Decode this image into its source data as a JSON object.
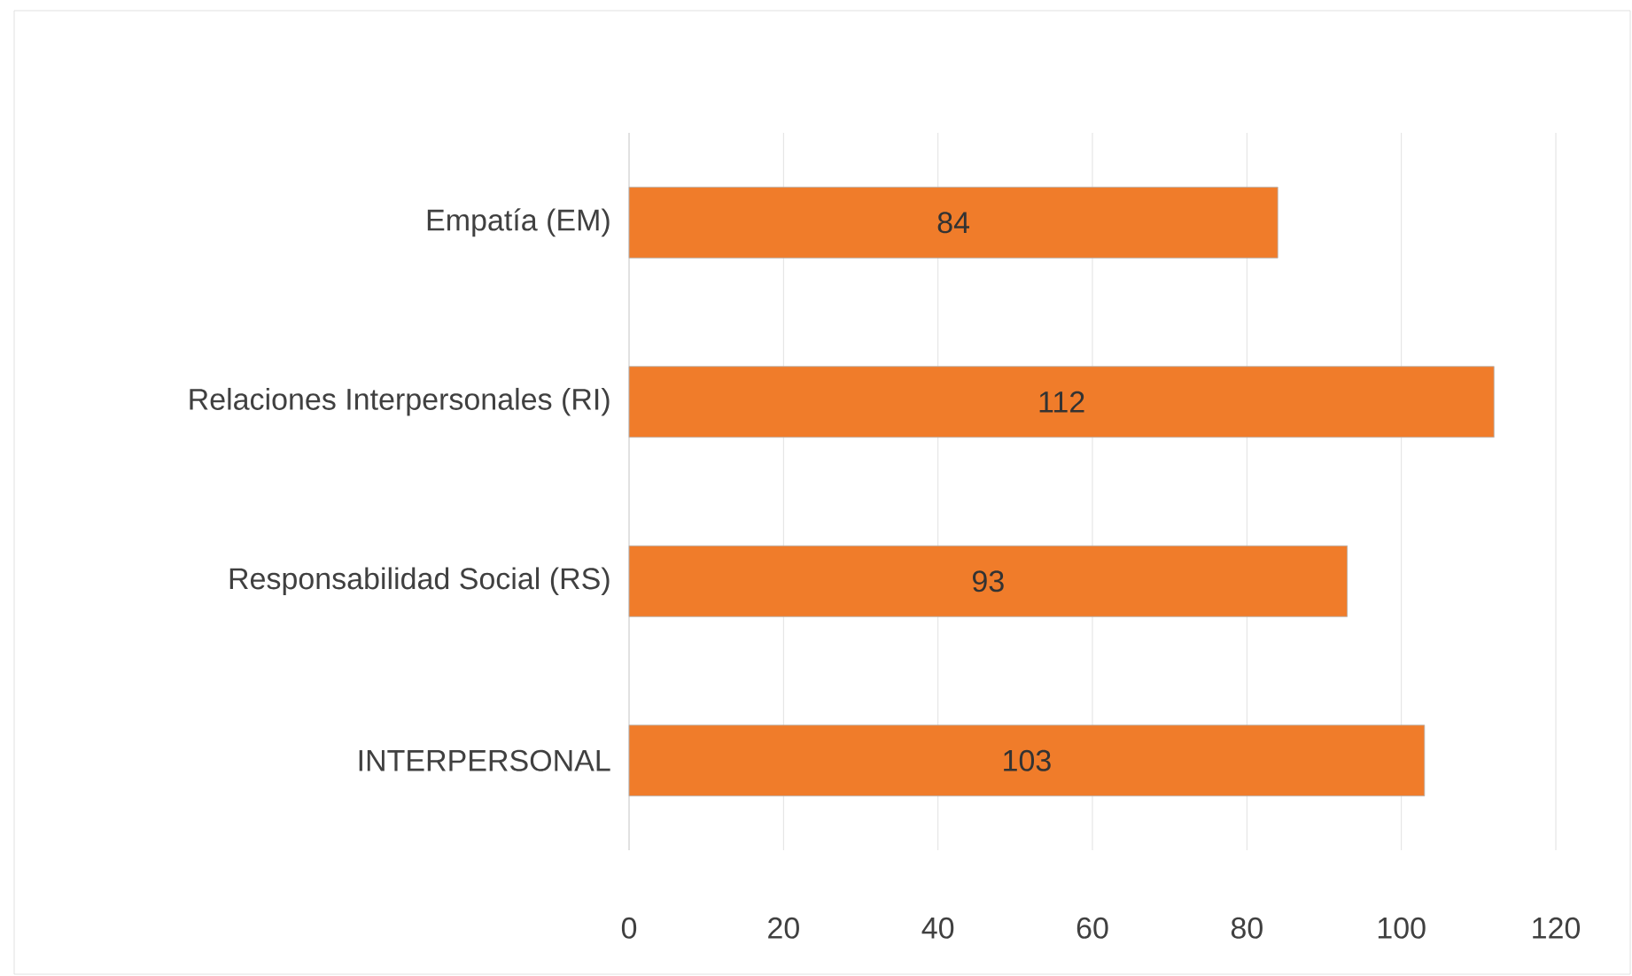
{
  "chart_data": {
    "type": "bar",
    "orientation": "horizontal",
    "categories": [
      "Empatía (EM)",
      "Relaciones Interpersonales (RI)",
      "Responsabilidad Social (RS)",
      "INTERPERSONAL"
    ],
    "values": [
      84,
      112,
      93,
      103
    ],
    "color": "#f07c2a",
    "xlim": [
      0,
      120
    ],
    "xticks": [
      0,
      20,
      40,
      60,
      80,
      100,
      120
    ],
    "grid": "x",
    "data_labels": true
  }
}
